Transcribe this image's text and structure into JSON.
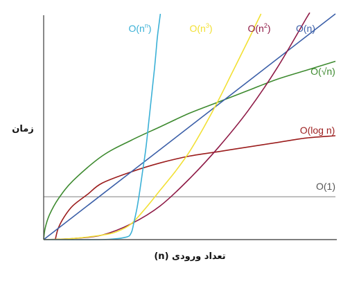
{
  "chart_data": {
    "type": "line",
    "title": "",
    "xlabel": "تعداد ورودی (n)",
    "ylabel": "زمان",
    "xlim": [
      0,
      1
    ],
    "ylim": [
      0,
      1
    ],
    "grid": false,
    "legend": "inline",
    "series": [
      {
        "name": "O(n^n)",
        "label_base": "O(n",
        "label_sup": "n",
        "label_tail": ")",
        "color": "#3ab0d6",
        "points": [
          [
            0,
            0
          ],
          [
            0.2,
            0
          ],
          [
            0.28,
            0.01
          ],
          [
            0.3,
            0.03
          ],
          [
            0.31,
            0.08
          ],
          [
            0.32,
            0.14
          ],
          [
            0.33,
            0.22
          ],
          [
            0.34,
            0.31
          ],
          [
            0.35,
            0.4
          ],
          [
            0.36,
            0.52
          ],
          [
            0.37,
            0.64
          ],
          [
            0.38,
            0.76
          ],
          [
            0.385,
            0.83
          ],
          [
            0.39,
            0.9
          ],
          [
            0.397,
            0.97
          ],
          [
            0.4,
            1.0
          ]
        ]
      },
      {
        "name": "O(n^3)",
        "label_base": "O(n",
        "label_sup": "3",
        "label_tail": ")",
        "color": "#f2e034",
        "points": [
          [
            0,
            0
          ],
          [
            0.1,
            0.005
          ],
          [
            0.2,
            0.02
          ],
          [
            0.25,
            0.035
          ],
          [
            0.3,
            0.07
          ],
          [
            0.35,
            0.14
          ],
          [
            0.4,
            0.22
          ],
          [
            0.45,
            0.3
          ],
          [
            0.5,
            0.39
          ],
          [
            0.55,
            0.5
          ],
          [
            0.6,
            0.62
          ],
          [
            0.65,
            0.75
          ],
          [
            0.7,
            0.88
          ],
          [
            0.73,
            0.96
          ],
          [
            0.745,
            1.0
          ]
        ]
      },
      {
        "name": "O(n^2)",
        "label_base": "O(n",
        "label_sup": "2",
        "label_tail": ")",
        "color": "#8e1a46",
        "points": [
          [
            0,
            0
          ],
          [
            0.1,
            0.005
          ],
          [
            0.2,
            0.02
          ],
          [
            0.3,
            0.07
          ],
          [
            0.4,
            0.15
          ],
          [
            0.5,
            0.27
          ],
          [
            0.6,
            0.41
          ],
          [
            0.7,
            0.57
          ],
          [
            0.8,
            0.76
          ],
          [
            0.9,
            0.98
          ],
          [
            0.91,
            1.0
          ]
        ]
      },
      {
        "name": "O(n)",
        "label_base": "O(n)",
        "label_sup": "",
        "label_tail": "",
        "color": "#3b5fa8",
        "points": [
          [
            0,
            0
          ],
          [
            1.0,
            1.0
          ]
        ]
      },
      {
        "name": "O(√n)",
        "label_base": "O(√n)",
        "label_sup": "",
        "label_tail": "",
        "color": "#3d8a2f",
        "points": [
          [
            0,
            0
          ],
          [
            0.005,
            0.05
          ],
          [
            0.02,
            0.11
          ],
          [
            0.05,
            0.18
          ],
          [
            0.1,
            0.26
          ],
          [
            0.2,
            0.37
          ],
          [
            0.3,
            0.44
          ],
          [
            0.4,
            0.5
          ],
          [
            0.5,
            0.56
          ],
          [
            0.6,
            0.61
          ],
          [
            0.7,
            0.66
          ],
          [
            0.8,
            0.71
          ],
          [
            0.9,
            0.75
          ],
          [
            1.0,
            0.79
          ]
        ]
      },
      {
        "name": "O(log n)",
        "label_base": "O(log n)",
        "label_sup": "",
        "label_tail": "",
        "color": "#9b1c1c",
        "points": [
          [
            0.04,
            0
          ],
          [
            0.05,
            0.05
          ],
          [
            0.07,
            0.1
          ],
          [
            0.1,
            0.15
          ],
          [
            0.15,
            0.2
          ],
          [
            0.2,
            0.25
          ],
          [
            0.3,
            0.3
          ],
          [
            0.4,
            0.34
          ],
          [
            0.5,
            0.37
          ],
          [
            0.6,
            0.39
          ],
          [
            0.7,
            0.41
          ],
          [
            0.8,
            0.43
          ],
          [
            0.9,
            0.45
          ],
          [
            1.0,
            0.46
          ]
        ]
      },
      {
        "name": "O(1)",
        "label_base": "O(1)",
        "label_sup": "",
        "label_tail": "",
        "color": "#999999",
        "points": [
          [
            0,
            0.19
          ],
          [
            1.0,
            0.19
          ]
        ]
      }
    ]
  },
  "colors": {
    "axis": "#555555",
    "label_default": "#555555"
  }
}
